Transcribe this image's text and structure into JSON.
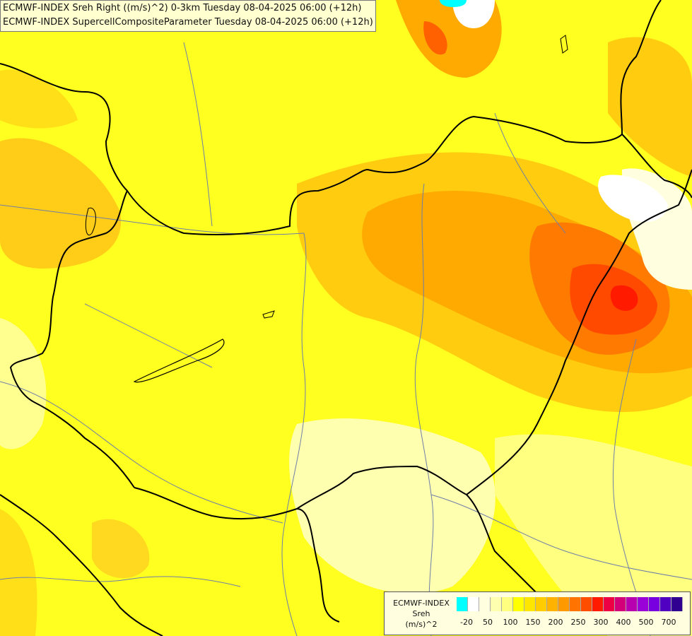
{
  "titles": [
    "ECMWF-INDEX Sreh Right ((m/s)^2) 0-3km Tuesday 08-04-2025 06:00 (+12h)",
    "ECMWF-INDEX SupercellCompositeParameter Tuesday 08-04-2025 06:00 (+12h)"
  ],
  "legend": {
    "title": [
      "ECMWF-INDEX",
      "Sreh",
      "(m/s)^2"
    ],
    "colors": [
      "#00ffff",
      "#ffffff",
      "#ffffe0",
      "#ffffb0",
      "#ffff80",
      "#ffff00",
      "#ffe600",
      "#ffcc00",
      "#ffb300",
      "#ff9900",
      "#ff7300",
      "#ff4d00",
      "#ff1a00",
      "#ee0044",
      "#d4007a",
      "#b800b0",
      "#9a00d8",
      "#7800e0",
      "#5000c0",
      "#300090"
    ],
    "tick_labels": [
      "-20",
      "50",
      "100",
      "150",
      "200",
      "250",
      "300",
      "400",
      "500",
      "700"
    ]
  }
}
